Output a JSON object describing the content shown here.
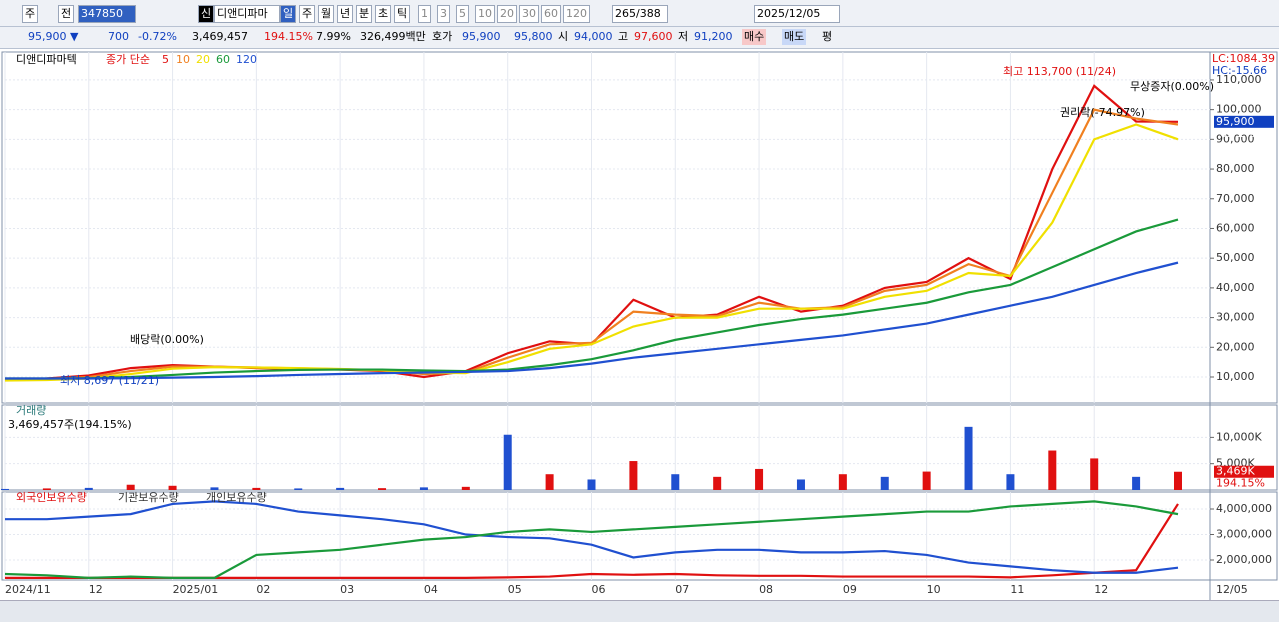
{
  "toolbar": {
    "prefix": "주",
    "prev": "전",
    "code": "347850",
    "sin": "신",
    "name": "디앤디파마",
    "periods": [
      "일",
      "주",
      "월",
      "년",
      "분",
      "초",
      "틱"
    ],
    "counts": [
      "1",
      "3",
      "5",
      "10",
      "20",
      "30",
      "60",
      "120"
    ],
    "count": "265",
    "total": "/388",
    "date": "2025/12/05"
  },
  "quote": {
    "price": "95,900 ▼",
    "change": "700",
    "rate": "-0.72%",
    "volume": "3,469,457",
    "volume_rate": "194.15%",
    "turnover": "7.99%",
    "amount": "326,499백만",
    "bid_label": "호가",
    "ask": "95,900",
    "bid": "95,800",
    "open_label": "시",
    "open": "94,000",
    "high_label": "고",
    "high": "97,600",
    "low_label": "저",
    "low": "91,200",
    "buy": "매수",
    "sell": "매도",
    "avg": "평"
  },
  "chart_data": [
    {
      "type": "line",
      "title": "디앤디파마텍",
      "legend_prefix": "종가 단순",
      "lc": "LC:1084.39",
      "hc": "HC:-15.66",
      "categories": [
        "2024/11",
        null,
        "12",
        null,
        "2025/01",
        null,
        "02",
        null,
        "03",
        null,
        "04",
        null,
        "05",
        null,
        "06",
        null,
        "07",
        null,
        "08",
        null,
        "09",
        null,
        "10",
        null,
        "11",
        null,
        "12",
        null,
        null
      ],
      "x_end_label": "12/05",
      "series": [
        {
          "name": "5",
          "color": "#e01010",
          "values": [
            9000,
            9500,
            10500,
            13000,
            14000,
            13500,
            13000,
            12800,
            12500,
            12000,
            10000,
            12000,
            18000,
            22000,
            21000,
            36000,
            30000,
            31000,
            37000,
            32000,
            34000,
            40000,
            42000,
            50000,
            43000,
            80000,
            108000,
            96000,
            95900
          ]
        },
        {
          "name": "10",
          "color": "#f08020",
          "values": [
            9000,
            9300,
            10000,
            12000,
            13500,
            13500,
            13200,
            12900,
            12600,
            12200,
            11000,
            11500,
            16500,
            21000,
            21500,
            32000,
            31000,
            30500,
            35000,
            33000,
            33500,
            39000,
            41000,
            48000,
            44000,
            72000,
            100000,
            97000,
            95000
          ]
        },
        {
          "name": "20",
          "color": "#f0e000",
          "values": [
            8800,
            9000,
            9500,
            11000,
            12800,
            13300,
            13200,
            13000,
            12700,
            12300,
            11500,
            11300,
            15000,
            19500,
            21000,
            27000,
            30000,
            30000,
            33000,
            33000,
            33000,
            37000,
            39000,
            45000,
            44000,
            62000,
            90000,
            95000,
            90000
          ]
        },
        {
          "name": "60",
          "color": "#1a9a3a",
          "values": [
            9500,
            9500,
            9600,
            10000,
            10700,
            11500,
            12000,
            12400,
            12500,
            12500,
            12200,
            12000,
            12500,
            14000,
            16000,
            19000,
            22500,
            25000,
            27500,
            29500,
            31000,
            33000,
            35000,
            38500,
            41000,
            47000,
            53000,
            59000,
            63000
          ]
        },
        {
          "name": "120",
          "color": "#2050d0",
          "values": [
            9500,
            9500,
            9500,
            9600,
            9800,
            10000,
            10300,
            10700,
            11000,
            11300,
            11500,
            11700,
            12000,
            13000,
            14500,
            16500,
            18000,
            19500,
            21000,
            22500,
            24000,
            26000,
            28000,
            31000,
            34000,
            37000,
            41000,
            45000,
            48500
          ]
        }
      ],
      "ylim": [
        1250,
        119400
      ],
      "yticks": [
        {
          "value": 10000,
          "label": "10,000"
        },
        {
          "value": 20000,
          "label": "20,000"
        },
        {
          "value": 30000,
          "label": "30,000"
        },
        {
          "value": 40000,
          "label": "40,000"
        },
        {
          "value": 50000,
          "label": "50,000"
        },
        {
          "value": 60000,
          "label": "60,000"
        },
        {
          "value": 70000,
          "label": "70,000"
        },
        {
          "value": 80000,
          "label": "80,000"
        },
        {
          "value": 90000,
          "label": "90,000"
        },
        {
          "value": 100000,
          "label": "100,000"
        },
        {
          "value": 110000,
          "label": "110,000"
        }
      ],
      "last": {
        "value": 95900,
        "label": "95,900"
      },
      "last_rate": "-0.72%",
      "annotations": [
        "최고 113,700 (11/24)",
        "최저 8,697 (11/21)",
        "배당락(0.00%)",
        "권리락(-74.97%)",
        "무상증자(0.00%)"
      ]
    },
    {
      "type": "bar",
      "title": "거래량",
      "subtitle": "3,469,457주(194.15%)",
      "values": [
        200,
        300,
        400,
        1000,
        800,
        500,
        400,
        300,
        400,
        350,
        500,
        600,
        10500,
        3000,
        2000,
        5500,
        3000,
        2500,
        4000,
        2000,
        3000,
        2500,
        3500,
        12000,
        3000,
        7500,
        6000,
        2500,
        3469
      ],
      "colors": [
        "#2050d0",
        "#e01010",
        "#2050d0",
        "#e01010",
        "#e01010",
        "#2050d0",
        "#e01010",
        "#2050d0",
        "#2050d0",
        "#e01010",
        "#2050d0",
        "#e01010",
        "#2050d0",
        "#e01010",
        "#2050d0",
        "#e01010",
        "#2050d0",
        "#e01010",
        "#e01010",
        "#2050d0",
        "#e01010",
        "#2050d0",
        "#e01010",
        "#2050d0",
        "#2050d0",
        "#e01010",
        "#e01010",
        "#2050d0",
        "#e01010"
      ],
      "ylim": [
        0,
        16150
      ],
      "yticks": [
        {
          "value": 5000,
          "label": "5,000K"
        },
        {
          "value": 10000,
          "label": "10,000K"
        }
      ],
      "last": {
        "value": 3469,
        "label": "3,469K"
      },
      "last_rate": "194.15%"
    },
    {
      "type": "line",
      "series": [
        {
          "name": "외국인보유수량",
          "color": "#e01010",
          "values": [
            1300000,
            1300000,
            1300000,
            1300000,
            1300000,
            1300000,
            1300000,
            1300000,
            1300000,
            1300000,
            1300000,
            1300000,
            1320000,
            1350000,
            1450000,
            1420000,
            1450000,
            1400000,
            1380000,
            1380000,
            1350000,
            1350000,
            1350000,
            1350000,
            1320000,
            1400000,
            1500000,
            1600000,
            4200000
          ]
        },
        {
          "name": "기관보유수량",
          "color": "#2050d0",
          "values": [
            3600000,
            3600000,
            3700000,
            3800000,
            4200000,
            4300000,
            4200000,
            3900000,
            3750000,
            3600000,
            3400000,
            3000000,
            2900000,
            2850000,
            2600000,
            2100000,
            2300000,
            2400000,
            2400000,
            2300000,
            2300000,
            2350000,
            2200000,
            1900000,
            1750000,
            1600000,
            1500000,
            1500000,
            1700000
          ]
        },
        {
          "name": "개인보유수량",
          "color": "#1a9a3a",
          "values": [
            1450000,
            1400000,
            1300000,
            1350000,
            1300000,
            1300000,
            2200000,
            2300000,
            2400000,
            2600000,
            2800000,
            2900000,
            3100000,
            3200000,
            3100000,
            3200000,
            3300000,
            3400000,
            3500000,
            3600000,
            3700000,
            3800000,
            3900000,
            3900000,
            4100000,
            4200000,
            4300000,
            4100000,
            3800000
          ]
        }
      ],
      "ylim": [
        1216000,
        4667000
      ],
      "yticks": [
        {
          "value": 2000000,
          "label": "2,000,000"
        },
        {
          "value": 3000000,
          "label": "3,000,000"
        },
        {
          "value": 4000000,
          "label": "4,000,000"
        }
      ]
    }
  ]
}
